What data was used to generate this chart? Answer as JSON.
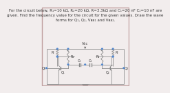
{
  "bg_color": "#f2eded",
  "border_color": "#c0a0a0",
  "text_color": "#333333",
  "wire_color": "#888888",
  "component_color": "#888888",
  "node_color": "#5588cc",
  "title_lines": [
    "For the circuit below, R₁=10 kΩ, R₂=20 kΩ, R⁣=3.3kΩ and C₁=20 nF C₂=10 nF are",
    "given. Find the frequency value for the circuit for the given values. Draw the wave",
    "forms for Q₁, Q₂, Vʙᴇ₁ and Vʙᴇ₂."
  ],
  "title_fontsize": 4.0,
  "vcc_label": "Vcc",
  "gnd_label": "+",
  "labels": {
    "R1": "R₁",
    "R2": "R₂",
    "Rc_left": "Rᶜ",
    "Rc_right": "Rᶜ",
    "C1": "C₂",
    "C2": "C₁",
    "Q1": "Q₁",
    "Q2": "Q₂"
  }
}
